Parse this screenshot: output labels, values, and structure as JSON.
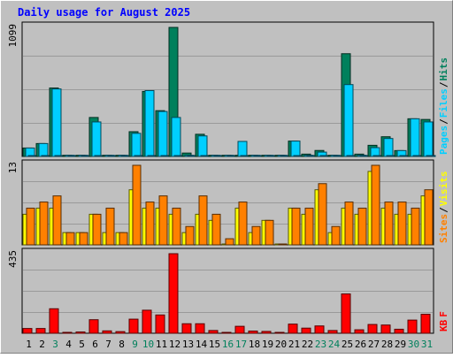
{
  "chart_data": {
    "type": "bar",
    "title": "Daily usage for August 2025",
    "categories": [
      "1",
      "2",
      "3",
      "4",
      "5",
      "6",
      "7",
      "8",
      "9",
      "10",
      "11",
      "12",
      "13",
      "14",
      "15",
      "16",
      "17",
      "18",
      "19",
      "20",
      "21",
      "22",
      "23",
      "24",
      "25",
      "26",
      "27",
      "28",
      "29",
      "30",
      "31"
    ],
    "weekend_days": [
      "3",
      "9",
      "10",
      "16",
      "17",
      "23",
      "24",
      "30",
      "31"
    ],
    "panels": [
      {
        "id": "top",
        "ymax": 1099,
        "ymax_label": "1099",
        "right_label": [
          "Pages",
          "/",
          "Files",
          "/",
          "Hits"
        ],
        "series": [
          {
            "name": "Hits",
            "color": "#00805c",
            "values": [
              72,
              110,
              583,
              10,
              10,
              332,
              10,
              10,
              211,
              554,
              390,
              1099,
              29,
              189,
              10,
              10,
              10,
              10,
              10,
              10,
              131,
              20,
              51,
              10,
              875,
              20,
              95,
              168,
              50,
              321,
              315
            ]
          },
          {
            "name": "Files",
            "color": "#00cfff",
            "values": [
              72,
              110,
              575,
              10,
              10,
              294,
              10,
              10,
              197,
              561,
              383,
              332,
              10,
              175,
              10,
              10,
              128,
              10,
              10,
              10,
              131,
              10,
              37,
              10,
              612,
              10,
              75,
              153,
              50,
              321,
              294
            ]
          },
          {
            "name": "Pages",
            "color": "#00c0ff",
            "values": [
              0,
              0,
              0,
              0,
              0,
              0,
              0,
              0,
              0,
              0,
              0,
              0,
              0,
              0,
              0,
              0,
              0,
              0,
              0,
              0,
              0,
              0,
              0,
              0,
              0,
              0,
              0,
              0,
              0,
              0,
              0
            ]
          }
        ]
      },
      {
        "id": "mid",
        "ymax": 13,
        "ymax_label": "13",
        "right_label": [
          "Sites",
          "/",
          "Visits"
        ],
        "series": [
          {
            "name": "Visits",
            "color": "#ffff00",
            "values": [
              5,
              6,
              6,
              2,
              2,
              5,
              2,
              2,
              9,
              6,
              6,
              5,
              2,
              5,
              4,
              0,
              6,
              2,
              4,
              0,
              6,
              5,
              9,
              2,
              6,
              5,
              12,
              6,
              5,
              5,
              8
            ]
          },
          {
            "name": "Sites",
            "color": "#ff8000",
            "values": [
              6,
              7,
              8,
              2,
              2,
              5,
              6,
              2,
              13,
              7,
              8,
              6,
              3,
              8,
              5,
              1,
              7,
              3,
              4,
              0,
              6,
              6,
              10,
              3,
              7,
              6,
              13,
              7,
              7,
              6,
              9
            ]
          }
        ]
      },
      {
        "id": "bot",
        "ymax": 435,
        "ymax_label": "435",
        "right_label": [
          "KB",
          "F"
        ],
        "series": [
          {
            "name": "KB F",
            "color": "#ff0000",
            "values": [
              26,
              26,
              134,
              5,
              7,
              74,
              13,
              9,
              77,
              126,
              100,
              435,
              52,
              52,
              15,
              4,
              38,
              12,
              10,
              0,
              50,
              28,
              40,
              15,
              215,
              19,
              48,
              45,
              22,
              72,
              104
            ]
          }
        ]
      }
    ]
  },
  "colors": {
    "background": "#c0c0c0",
    "title": "#0000ff",
    "weekday_label": "#000000",
    "weekend_label": "#00805c",
    "files": "#00cfff",
    "hits": "#00805c",
    "sites": "#ff8000",
    "visits": "#ffff00",
    "kbytes": "#ff0000"
  }
}
